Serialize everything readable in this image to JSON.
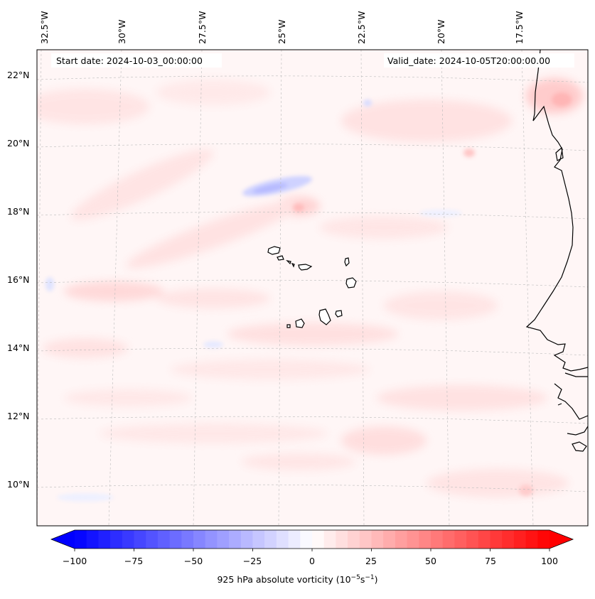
{
  "map": {
    "projection": "lambert-like",
    "variable": "925 hPa absolute vorticity",
    "start_date_label": "Start date: 2024-10-03_00:00:00",
    "valid_date_label": "Valid_date: 2024-10-05T20:00:00.00",
    "longitude_labels": [
      "32.5°W",
      "30°W",
      "27.5°W",
      "25°W",
      "22.5°W",
      "20°W",
      "17.5°W"
    ],
    "latitude_labels": [
      "22°N",
      "20°N",
      "18°N",
      "16°N",
      "14°N",
      "12°N",
      "10°N"
    ]
  },
  "colorbar": {
    "title": "925 hPa absolute vorticity (10",
    "title_exp1": "−5",
    "title_mid": "s",
    "title_exp2": "−1",
    "title_end": ")",
    "ticks": [
      "−100",
      "−75",
      "−50",
      "−25",
      "0",
      "25",
      "50",
      "75",
      "100"
    ],
    "min": -100,
    "max": 100,
    "step": 5,
    "neg_color": "#0000ff",
    "pos_color": "#ff0000",
    "mid_color": "#ffffff"
  }
}
